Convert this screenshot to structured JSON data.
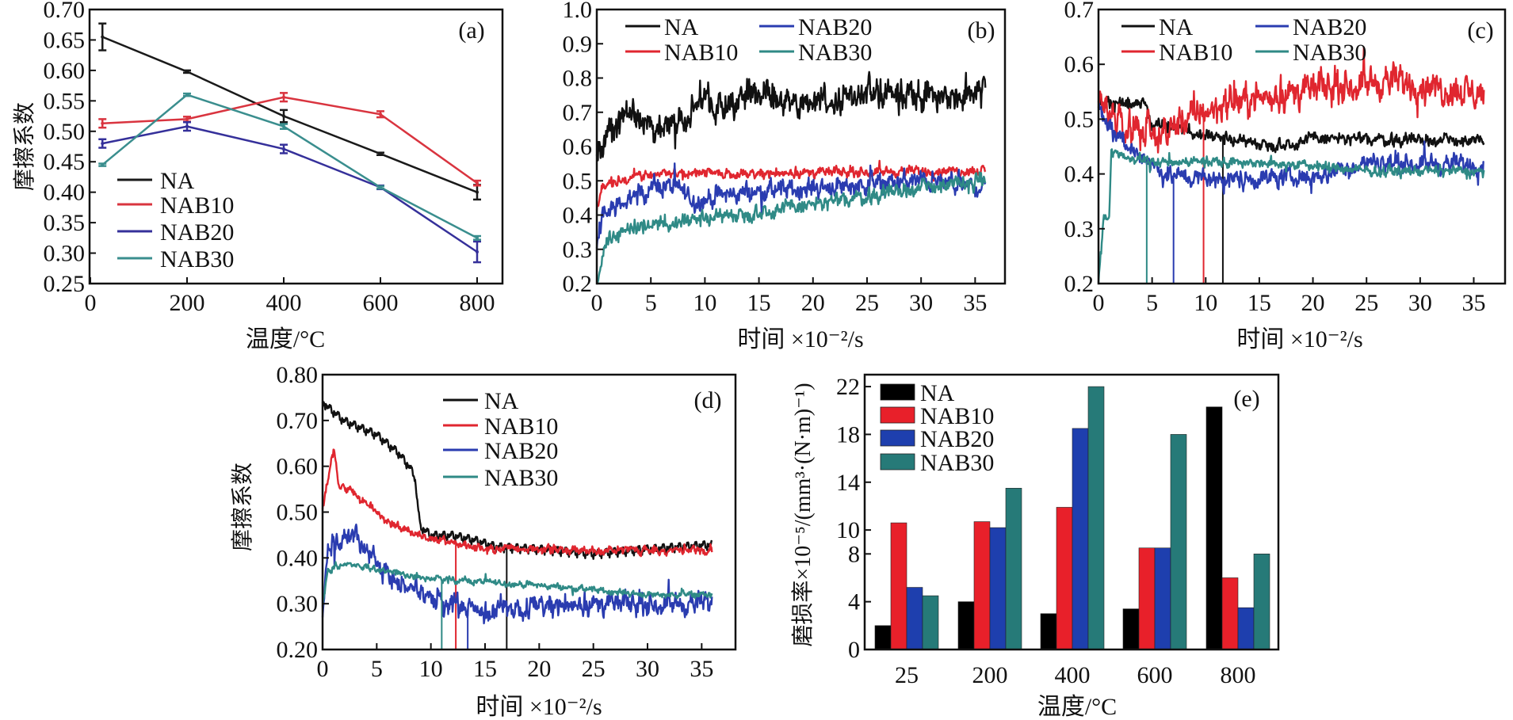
{
  "chart_data": [
    {
      "panel": "(a)",
      "type": "line",
      "xlabel": "温度/°C",
      "ylabel": "摩擦系数",
      "xlim": [
        0,
        800
      ],
      "ylim": [
        0.25,
        0.7
      ],
      "xticks": [
        "0",
        "200",
        "400",
        "600",
        "800"
      ],
      "yticks": [
        "0.25",
        "0.30",
        "0.35",
        "0.40",
        "0.45",
        "0.50",
        "0.55",
        "0.60",
        "0.65",
        "0.70"
      ],
      "legend": "left-middle",
      "x": [
        25,
        200,
        400,
        600,
        800
      ],
      "series": [
        {
          "name": "NA",
          "color": "#1a1a1a",
          "values": [
            0.655,
            0.598,
            0.525,
            0.463,
            0.4
          ],
          "err": [
            0.022,
            0.002,
            0.01,
            0.002,
            0.012
          ]
        },
        {
          "name": "NAB10",
          "color": "#d9343f",
          "values": [
            0.513,
            0.52,
            0.556,
            0.528,
            0.415
          ],
          "err": [
            0.007,
            0.004,
            0.007,
            0.005,
            0.004
          ]
        },
        {
          "name": "NAB20",
          "color": "#35309a",
          "values": [
            0.48,
            0.508,
            0.471,
            0.408,
            0.302
          ],
          "err": [
            0.007,
            0.007,
            0.007,
            0.003,
            0.017
          ]
        },
        {
          "name": "NAB30",
          "color": "#3a8e8e",
          "values": [
            0.445,
            0.56,
            0.508,
            0.408,
            0.325
          ],
          "err": [
            0.002,
            0.002,
            0.004,
            0.002,
            0.003
          ]
        }
      ]
    },
    {
      "panel": "(b)",
      "type": "line",
      "xlabel": "时间 ×10⁻²/s",
      "xlim": [
        0,
        36
      ],
      "ylim": [
        0.2,
        1.0
      ],
      "xticks": [
        "0",
        "5",
        "10",
        "15",
        "20",
        "25",
        "30",
        "35"
      ],
      "yticks": [
        "0.2",
        "0.3",
        "0.4",
        "0.5",
        "0.6",
        "0.7",
        "0.8",
        "0.9",
        "1.0"
      ],
      "legend": "top",
      "series": [
        {
          "name": "NA",
          "color": "#111111",
          "noise": 0.04,
          "trend": [
            [
              0,
              0.58
            ],
            [
              1,
              0.62
            ],
            [
              2,
              0.65
            ],
            [
              3,
              0.7
            ],
            [
              5,
              0.66
            ],
            [
              8,
              0.68
            ],
            [
              10,
              0.72
            ],
            [
              15,
              0.76
            ],
            [
              18,
              0.72
            ],
            [
              22,
              0.74
            ],
            [
              25,
              0.76
            ],
            [
              30,
              0.76
            ],
            [
              34,
              0.74
            ],
            [
              36,
              0.79
            ]
          ]
        },
        {
          "name": "NAB10",
          "color": "#e0262f",
          "noise": 0.012,
          "trend": [
            [
              0,
              0.42
            ],
            [
              0.5,
              0.48
            ],
            [
              2,
              0.5
            ],
            [
              5,
              0.52
            ],
            [
              36,
              0.53
            ]
          ]
        },
        {
          "name": "NAB20",
          "color": "#2a3cb0",
          "noise": 0.025,
          "trend": [
            [
              0,
              0.3
            ],
            [
              0.5,
              0.4
            ],
            [
              3,
              0.45
            ],
            [
              6,
              0.49
            ],
            [
              8,
              0.47
            ],
            [
              9,
              0.44
            ],
            [
              12,
              0.46
            ],
            [
              20,
              0.48
            ],
            [
              30,
              0.5
            ],
            [
              36,
              0.48
            ]
          ]
        },
        {
          "name": "NAB30",
          "color": "#2f8a86",
          "noise": 0.02,
          "trend": [
            [
              0,
              0.2
            ],
            [
              1,
              0.33
            ],
            [
              3,
              0.36
            ],
            [
              10,
              0.39
            ],
            [
              20,
              0.43
            ],
            [
              30,
              0.48
            ],
            [
              36,
              0.5
            ]
          ]
        }
      ]
    },
    {
      "panel": "(c)",
      "type": "line",
      "xlabel": "时间 ×10⁻²/s",
      "xlim": [
        0,
        36
      ],
      "ylim": [
        0.2,
        0.7
      ],
      "xticks": [
        "0",
        "5",
        "10",
        "15",
        "20",
        "25",
        "30",
        "35"
      ],
      "yticks": [
        "0.2",
        "0.3",
        "0.4",
        "0.5",
        "0.6",
        "0.7"
      ],
      "legend": "top",
      "series": [
        {
          "name": "NA",
          "color": "#111111",
          "noise": 0.01,
          "drop_at": 11.6,
          "trend": [
            [
              0,
              0.53
            ],
            [
              4.5,
              0.53
            ],
            [
              5,
              0.49
            ],
            [
              8,
              0.48
            ],
            [
              10,
              0.47
            ],
            [
              15,
              0.455
            ],
            [
              18,
              0.455
            ],
            [
              20,
              0.465
            ],
            [
              36,
              0.46
            ]
          ]
        },
        {
          "name": "NAB10",
          "color": "#e0262f",
          "noise": 0.025,
          "drop_at": 9.8,
          "trend": [
            [
              0,
              0.54
            ],
            [
              2,
              0.49
            ],
            [
              6,
              0.47
            ],
            [
              8,
              0.5
            ],
            [
              12,
              0.53
            ],
            [
              20,
              0.555
            ],
            [
              27,
              0.57
            ],
            [
              36,
              0.545
            ]
          ]
        },
        {
          "name": "NAB20",
          "color": "#2a3cb0",
          "noise": 0.015,
          "drop_at": 7,
          "trend": [
            [
              0,
              0.52
            ],
            [
              2,
              0.46
            ],
            [
              5,
              0.42
            ],
            [
              6,
              0.4
            ],
            [
              10,
              0.39
            ],
            [
              20,
              0.395
            ],
            [
              25,
              0.42
            ],
            [
              30,
              0.42
            ],
            [
              36,
              0.415
            ]
          ]
        },
        {
          "name": "NAB30",
          "color": "#2f8a86",
          "noise": 0.008,
          "drop_at": 4.5,
          "trend": [
            [
              0,
              0.2
            ],
            [
              0.5,
              0.32
            ],
            [
              1,
              0.32
            ],
            [
              1.2,
              0.44
            ],
            [
              3,
              0.43
            ],
            [
              5,
              0.42
            ],
            [
              10,
              0.425
            ],
            [
              20,
              0.415
            ],
            [
              25,
              0.405
            ],
            [
              36,
              0.405
            ]
          ]
        }
      ]
    },
    {
      "panel": "(d)",
      "type": "line",
      "xlabel": "时间 ×10⁻²/s",
      "ylabel": "摩擦系数",
      "xlim": [
        0,
        36
      ],
      "ylim": [
        0.2,
        0.8
      ],
      "xticks": [
        "0",
        "5",
        "10",
        "15",
        "20",
        "25",
        "30",
        "35"
      ],
      "yticks": [
        "0.20",
        "0.30",
        "0.40",
        "0.50",
        "0.60",
        "0.70",
        "0.80"
      ],
      "legend": "top-center",
      "series": [
        {
          "name": "NA",
          "color": "#111111",
          "noise": 0.015,
          "drop_at": 17,
          "trend": [
            [
              0,
              0.74
            ],
            [
              2,
              0.7
            ],
            [
              5,
              0.67
            ],
            [
              7,
              0.63
            ],
            [
              8,
              0.6
            ],
            [
              8.5,
              0.58
            ],
            [
              9,
              0.47
            ],
            [
              10,
              0.45
            ],
            [
              12,
              0.45
            ],
            [
              14,
              0.44
            ],
            [
              16,
              0.425
            ],
            [
              20,
              0.42
            ],
            [
              25,
              0.41
            ],
            [
              30,
              0.42
            ],
            [
              36,
              0.43
            ]
          ]
        },
        {
          "name": "NAB10",
          "color": "#e0262f",
          "noise": 0.008,
          "drop_at": 12.3,
          "trend": [
            [
              0,
              0.5
            ],
            [
              1,
              0.64
            ],
            [
              1.5,
              0.56
            ],
            [
              3,
              0.54
            ],
            [
              6,
              0.48
            ],
            [
              10,
              0.44
            ],
            [
              15,
              0.42
            ],
            [
              36,
              0.415
            ]
          ]
        },
        {
          "name": "NAB20",
          "color": "#2a3cb0",
          "noise": 0.02,
          "drop_at": 13.4,
          "trend": [
            [
              0,
              0.28
            ],
            [
              0.5,
              0.42
            ],
            [
              3,
              0.45
            ],
            [
              5,
              0.38
            ],
            [
              8,
              0.33
            ],
            [
              11,
              0.3
            ],
            [
              15,
              0.28
            ],
            [
              20,
              0.3
            ],
            [
              36,
              0.3
            ]
          ]
        },
        {
          "name": "NAB30",
          "color": "#2f8a86",
          "noise": 0.006,
          "drop_at": 11,
          "trend": [
            [
              0,
              0.3
            ],
            [
              0.5,
              0.37
            ],
            [
              2,
              0.39
            ],
            [
              5,
              0.375
            ],
            [
              10,
              0.355
            ],
            [
              20,
              0.34
            ],
            [
              30,
              0.32
            ],
            [
              36,
              0.32
            ]
          ]
        }
      ]
    },
    {
      "panel": "(e)",
      "type": "bar",
      "xlabel": "温度/°C",
      "ylabel": "磨损率×10⁻⁵/(mm³·(N·m)⁻¹)",
      "ylim": [
        0,
        23
      ],
      "yticks": [
        "0",
        "4",
        "8",
        "10",
        "14",
        "18",
        "22"
      ],
      "categories": [
        "25",
        "200",
        "400",
        "600",
        "800"
      ],
      "legend": "top-left",
      "series": [
        {
          "name": "NA",
          "color": "#000000",
          "values": [
            2.0,
            4.0,
            3.0,
            3.4,
            20.3
          ]
        },
        {
          "name": "NAB10",
          "color": "#e8202a",
          "values": [
            10.6,
            10.7,
            11.9,
            8.5,
            6.0
          ]
        },
        {
          "name": "NAB20",
          "color": "#1e3fae",
          "values": [
            5.2,
            10.2,
            18.5,
            8.5,
            3.5
          ]
        },
        {
          "name": "NAB30",
          "color": "#267a78",
          "values": [
            4.5,
            13.5,
            22.0,
            18.0,
            8.0
          ]
        }
      ]
    }
  ]
}
